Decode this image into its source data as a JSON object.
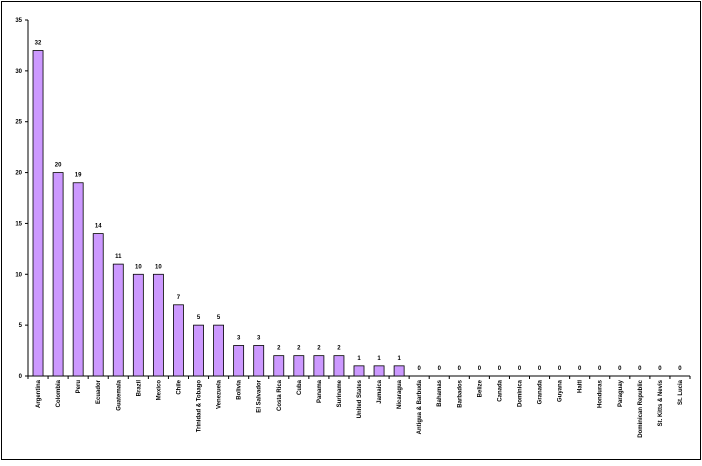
{
  "chart_data": {
    "type": "bar",
    "categories": [
      "Argentina",
      "Colombia",
      "Peru",
      "Ecuador",
      "Guatemala",
      "Brazil",
      "Mexico",
      "Chile",
      "Trinidad & Tobago",
      "Venezuela",
      "Bolivia",
      "El Salvador",
      "Costa Rica",
      "Cuba",
      "Panama",
      "Suriname",
      "United States",
      "Jamaica",
      "Nicaragua",
      "Antigua & Barbuda",
      "Bahamas",
      "Barbados",
      "Belize",
      "Canada",
      "Dominica",
      "Granada",
      "Guyana",
      "Haiti",
      "Honduras",
      "Paraguay",
      "Dominican Republic",
      "St. Kitts & Nevis",
      "St. Lucia"
    ],
    "values": [
      32,
      20,
      19,
      14,
      11,
      10,
      10,
      7,
      5,
      5,
      3,
      3,
      2,
      2,
      2,
      2,
      1,
      1,
      1,
      0,
      0,
      0,
      0,
      0,
      0,
      0,
      0,
      0,
      0,
      0,
      0,
      0,
      0
    ],
    "color": "#cc99ff",
    "ylim": [
      0,
      35
    ],
    "yticks": [
      0,
      5,
      10,
      15,
      20,
      25,
      30,
      35
    ],
    "grid": false
  }
}
